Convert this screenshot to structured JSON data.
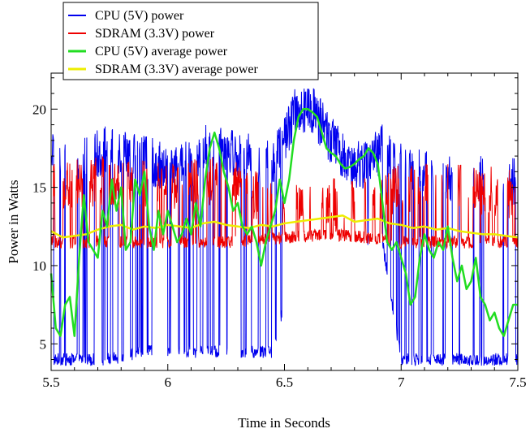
{
  "chart_data": {
    "type": "line",
    "title": "",
    "xlabel": "Time in Seconds",
    "ylabel": "Power in Watts",
    "xlim": [
      5.5,
      7.5
    ],
    "ylim": [
      3.3,
      22.3
    ],
    "x_ticks": [
      5.5,
      6,
      6.5,
      7,
      7.5
    ],
    "x_tick_labels": [
      "5.5",
      "6",
      "6.5",
      "7",
      "7.5"
    ],
    "y_ticks": [
      5,
      10,
      15,
      20
    ],
    "y_tick_labels": [
      "5",
      "10",
      "15",
      "20"
    ],
    "grid": false,
    "legend_position": "top-left, above the plot",
    "series": [
      {
        "name": "CPU (5V) power",
        "color": "#0000ee",
        "style": "raw",
        "level_profile": {
          "x": [
            5.5,
            5.62,
            5.75,
            5.9,
            6.0,
            6.1,
            6.2,
            6.32,
            6.45,
            6.55,
            6.62,
            6.7,
            6.78,
            6.85,
            6.92,
            7.0,
            7.1,
            7.2,
            7.3,
            7.4,
            7.5
          ],
          "high": [
            17.5,
            16.5,
            17.5,
            17.0,
            16.0,
            16.5,
            18.0,
            17.0,
            16.5,
            20.0,
            20.0,
            18.0,
            16.5,
            16.5,
            17.5,
            16.5,
            16.0,
            15.5,
            16.0,
            15.0,
            15.5
          ],
          "low": [
            4.0,
            4.0,
            4.0,
            4.5,
            4.5,
            4.5,
            4.5,
            4.5,
            4.5,
            11.0,
            11.5,
            12.0,
            12.0,
            11.5,
            11.5,
            4.0,
            4.0,
            4.0,
            4.0,
            4.0,
            4.0
          ],
          "duty": [
            0.45,
            0.55,
            0.6,
            0.55,
            0.5,
            0.55,
            0.65,
            0.55,
            0.5,
            0.98,
            0.98,
            0.95,
            0.92,
            0.9,
            0.9,
            0.3,
            0.35,
            0.3,
            0.3,
            0.25,
            0.3
          ]
        }
      },
      {
        "name": "SDRAM (3.3V) power",
        "color": "#ee0000",
        "style": "raw",
        "level_profile": {
          "x": [
            5.5,
            5.75,
            6.0,
            6.25,
            6.5,
            6.7,
            6.85,
            7.0,
            7.25,
            7.5
          ],
          "high": [
            15.0,
            15.5,
            15.0,
            15.5,
            13.5,
            14.0,
            14.0,
            15.0,
            15.0,
            14.5
          ],
          "low": [
            11.5,
            11.5,
            11.5,
            11.5,
            11.8,
            12.0,
            11.8,
            11.5,
            11.5,
            11.5
          ],
          "duty": [
            0.45,
            0.5,
            0.5,
            0.5,
            0.4,
            0.45,
            0.45,
            0.45,
            0.4,
            0.4
          ]
        }
      },
      {
        "name": "CPU (5V) average power",
        "color": "#22dd22",
        "style": "average",
        "x": [
          5.5,
          5.52,
          5.54,
          5.56,
          5.58,
          5.6,
          5.62,
          5.64,
          5.66,
          5.68,
          5.7,
          5.72,
          5.74,
          5.76,
          5.78,
          5.8,
          5.82,
          5.84,
          5.86,
          5.88,
          5.9,
          5.92,
          5.94,
          5.96,
          5.98,
          6.0,
          6.02,
          6.04,
          6.06,
          6.08,
          6.1,
          6.12,
          6.14,
          6.16,
          6.18,
          6.2,
          6.22,
          6.24,
          6.26,
          6.28,
          6.3,
          6.32,
          6.34,
          6.36,
          6.38,
          6.4,
          6.42,
          6.44,
          6.46,
          6.48,
          6.5,
          6.52,
          6.54,
          6.56,
          6.58,
          6.6,
          6.62,
          6.64,
          6.66,
          6.68,
          6.7,
          6.72,
          6.74,
          6.76,
          6.78,
          6.8,
          6.82,
          6.84,
          6.86,
          6.88,
          6.9,
          6.92,
          6.94,
          6.96,
          6.98,
          7.0,
          7.02,
          7.04,
          7.06,
          7.08,
          7.1,
          7.12,
          7.14,
          7.16,
          7.18,
          7.2,
          7.22,
          7.24,
          7.26,
          7.28,
          7.3,
          7.32,
          7.34,
          7.36,
          7.38,
          7.4,
          7.42,
          7.44,
          7.46,
          7.48,
          7.5
        ],
        "values": [
          9.5,
          6.0,
          5.5,
          7.5,
          8.0,
          5.5,
          10.5,
          14.5,
          11.5,
          11.0,
          10.5,
          13.5,
          12.5,
          15.5,
          13.5,
          15.0,
          11.0,
          11.5,
          15.5,
          14.5,
          16.0,
          12.5,
          11.0,
          13.5,
          12.0,
          13.5,
          12.5,
          11.5,
          12.0,
          13.0,
          12.0,
          14.0,
          12.5,
          15.5,
          17.5,
          18.5,
          17.5,
          16.0,
          15.0,
          13.5,
          14.0,
          12.5,
          12.0,
          12.5,
          11.5,
          10.0,
          11.5,
          12.5,
          13.5,
          15.5,
          14.0,
          15.5,
          18.0,
          19.5,
          20.0,
          20.0,
          19.8,
          19.5,
          18.5,
          17.5,
          17.2,
          17.0,
          16.5,
          16.2,
          16.3,
          16.5,
          16.8,
          17.0,
          17.5,
          17.2,
          16.5,
          14.0,
          11.5,
          11.0,
          11.5,
          10.5,
          9.5,
          7.5,
          8.0,
          10.5,
          12.0,
          11.0,
          10.5,
          11.5,
          11.0,
          12.5,
          10.5,
          9.0,
          10.0,
          8.5,
          9.0,
          10.5,
          8.0,
          7.5,
          6.5,
          7.0,
          6.0,
          5.5,
          6.5,
          7.5,
          7.5
        ]
      },
      {
        "name": "SDRAM (3.3V) average power",
        "color": "#eeee00",
        "style": "average",
        "x": [
          5.5,
          5.55,
          5.6,
          5.65,
          5.7,
          5.75,
          5.8,
          5.85,
          5.9,
          5.95,
          6.0,
          6.05,
          6.1,
          6.15,
          6.2,
          6.25,
          6.3,
          6.35,
          6.4,
          6.45,
          6.5,
          6.55,
          6.6,
          6.65,
          6.7,
          6.75,
          6.8,
          6.85,
          6.9,
          6.95,
          7.0,
          7.05,
          7.1,
          7.15,
          7.2,
          7.25,
          7.3,
          7.35,
          7.4,
          7.45,
          7.5
        ],
        "values": [
          12.2,
          11.8,
          11.9,
          12.0,
          12.3,
          12.5,
          12.6,
          12.3,
          12.5,
          12.4,
          12.6,
          12.5,
          12.4,
          12.7,
          12.8,
          12.6,
          12.5,
          12.4,
          12.6,
          12.5,
          12.7,
          12.8,
          12.9,
          13.0,
          13.1,
          13.2,
          12.8,
          12.9,
          13.0,
          12.7,
          12.6,
          12.4,
          12.5,
          12.3,
          12.4,
          12.2,
          12.1,
          12.0,
          12.0,
          11.9,
          11.8
        ]
      }
    ]
  }
}
